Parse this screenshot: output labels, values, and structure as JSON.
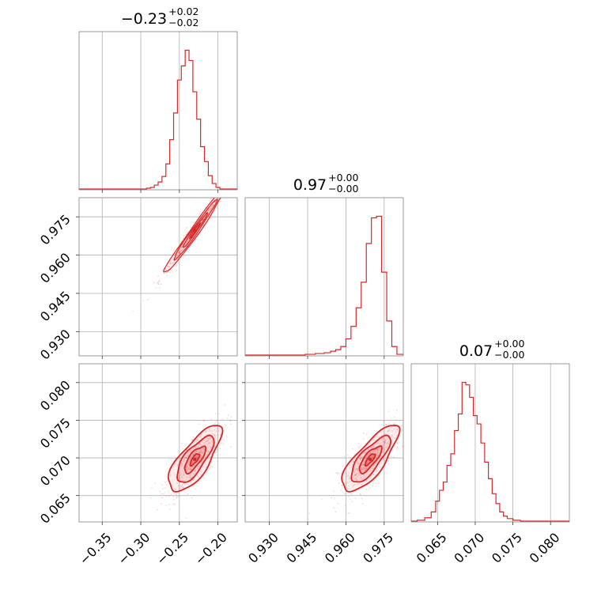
{
  "chart_data": {
    "type": "corner",
    "color": "#d62728",
    "grid": true,
    "parameters": [
      {
        "range": [
          -0.38,
          -0.175
        ],
        "ticks": [
          -0.35,
          -0.3,
          -0.25,
          -0.2
        ],
        "tick_labels": [
          "−0.35",
          "−0.30",
          "−0.25",
          "−0.20"
        ]
      },
      {
        "range": [
          0.9205,
          0.9825
        ],
        "ticks": [
          0.93,
          0.945,
          0.96,
          0.975
        ],
        "tick_labels": [
          "0.930",
          "0.945",
          "0.960",
          "0.975"
        ]
      },
      {
        "range": [
          0.0615,
          0.0825
        ],
        "ticks": [
          0.065,
          0.07,
          0.075,
          0.08
        ],
        "tick_labels": [
          "0.065",
          "0.070",
          "0.075",
          "0.080"
        ]
      }
    ],
    "marginal_titles": [
      {
        "value": "−0.23",
        "plus": "+0.02",
        "minus": "−0.02"
      },
      {
        "value": "0.97",
        "plus": "+0.00",
        "minus": "−0.00"
      },
      {
        "value": "0.07",
        "plus": "+0.00",
        "minus": "−0.00"
      }
    ],
    "histograms": [
      {
        "x": [
          -0.3,
          -0.295,
          -0.29,
          -0.285,
          -0.28,
          -0.275,
          -0.27,
          -0.265,
          -0.26,
          -0.255,
          -0.25,
          -0.245,
          -0.24,
          -0.235,
          -0.23,
          -0.225,
          -0.22,
          -0.215,
          -0.21,
          -0.205,
          -0.2,
          -0.195
        ],
        "y": [
          1,
          1,
          2,
          3,
          6,
          10,
          17,
          33,
          64,
          98,
          140,
          158,
          178,
          165,
          125,
          90,
          55,
          36,
          18,
          8,
          3,
          1
        ]
      },
      {
        "x": [
          0.93,
          0.934,
          0.938,
          0.942,
          0.946,
          0.95,
          0.953,
          0.955,
          0.957,
          0.959,
          0.961,
          0.963,
          0.965,
          0.967,
          0.969,
          0.971,
          0.973,
          0.975,
          0.977,
          0.979,
          0.981
        ],
        "y": [
          1,
          1,
          1,
          1,
          2,
          3,
          4,
          6,
          8,
          12,
          22,
          38,
          62,
          95,
          145,
          178,
          180,
          108,
          45,
          12,
          2
        ]
      },
      {
        "x": [
          0.0618,
          0.0628,
          0.0638,
          0.0645,
          0.065,
          0.0655,
          0.066,
          0.0665,
          0.067,
          0.0675,
          0.068,
          0.0685,
          0.069,
          0.0695,
          0.07,
          0.0705,
          0.071,
          0.0715,
          0.072,
          0.0725,
          0.073,
          0.0735,
          0.074,
          0.0745,
          0.0755,
          0.0765,
          0.0775,
          0.0795
        ],
        "y": [
          1,
          2,
          5,
          12,
          25,
          38,
          48,
          68,
          82,
          110,
          130,
          168,
          165,
          150,
          128,
          118,
          95,
          72,
          52,
          34,
          22,
          12,
          7,
          4,
          2,
          1,
          1,
          1
        ]
      }
    ],
    "contours_2d": [
      {
        "pair": [
          0,
          1
        ],
        "center": [
          -0.23,
          0.9695
        ],
        "sigma": [
          0.02,
          0.0085
        ],
        "rho": 0.985
      },
      {
        "pair": [
          0,
          2
        ],
        "center": [
          -0.23,
          0.0698
        ],
        "sigma": [
          0.017,
          0.0022
        ],
        "rho": 0.75
      },
      {
        "pair": [
          1,
          2
        ],
        "center": [
          0.9695,
          0.0698
        ],
        "sigma": [
          0.0055,
          0.0022
        ],
        "rho": 0.78
      }
    ]
  }
}
